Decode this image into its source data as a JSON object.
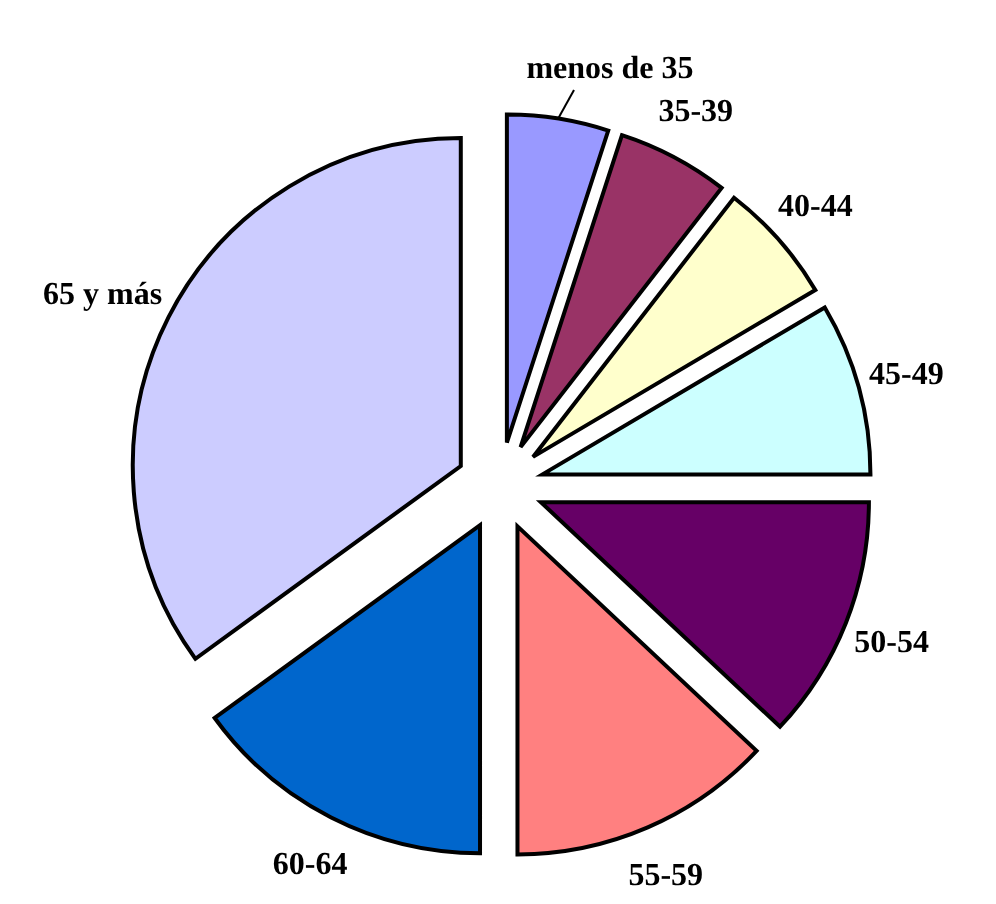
{
  "chart_data": {
    "type": "pie",
    "categories": [
      "menos de 35",
      "35-39",
      "40-44",
      "45-49",
      "50-54",
      "55-59",
      "60-64",
      "65 y más"
    ],
    "values": [
      5,
      5.5,
      6,
      8.5,
      12,
      13,
      15,
      35
    ],
    "colors": [
      "#9999ff",
      "#993366",
      "#ffffcc",
      "#ccffff",
      "#660066",
      "#ff8080",
      "#0066cc",
      "#ccccff"
    ]
  }
}
